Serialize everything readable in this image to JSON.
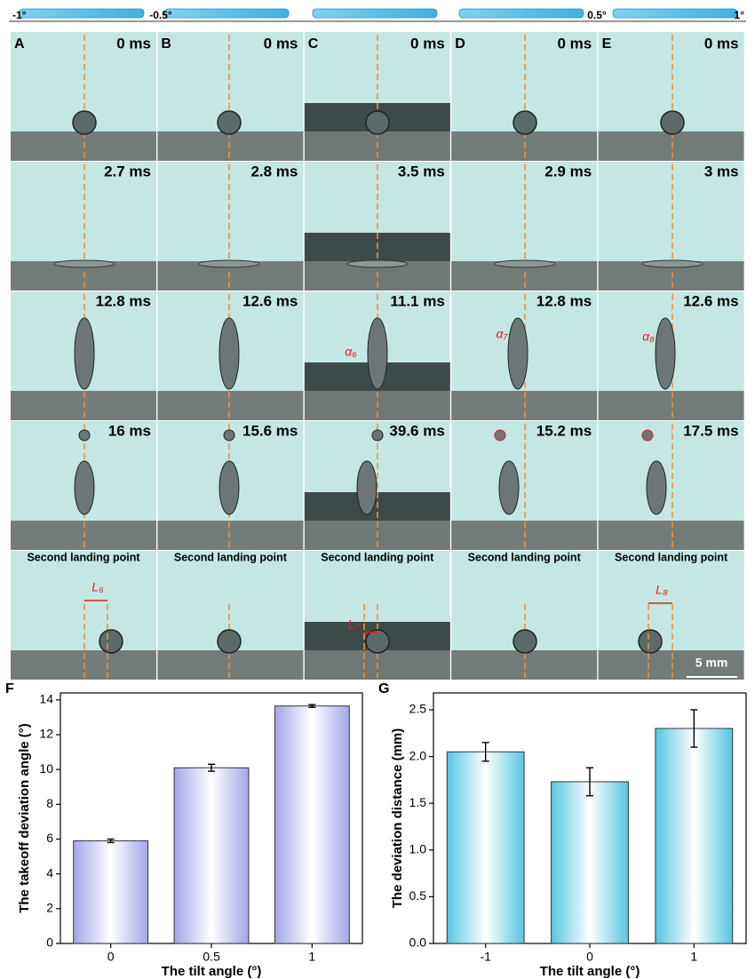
{
  "tilt_labels": [
    "-1°",
    "-0.5°",
    "0.5°",
    "1°"
  ],
  "panels": [
    {
      "letter": "A",
      "times": [
        "0 ms",
        "2.7 ms",
        "12.8 ms",
        "16 ms"
      ]
    },
    {
      "letter": "B",
      "times": [
        "0 ms",
        "2.8 ms",
        "12.6 ms",
        "15.6 ms"
      ]
    },
    {
      "letter": "C",
      "times": [
        "0 ms",
        "3.5 ms",
        "11.1 ms",
        "39.6 ms"
      ]
    },
    {
      "letter": "D",
      "times": [
        "0 ms",
        "2.9 ms",
        "12.8 ms",
        "15.2 ms"
      ]
    },
    {
      "letter": "E",
      "times": [
        "0 ms",
        "3 ms",
        "12.6 ms",
        "17.5 ms"
      ]
    }
  ],
  "landing_label": "Second landing point",
  "annotations": [
    "α₆",
    "α₇",
    "α₈",
    "L₆",
    "L₇",
    "L₈"
  ],
  "scale_bar": "5 mm",
  "chart_data": [
    {
      "type": "bar",
      "panel": "F",
      "xlabel": "The tilt angle (°)",
      "ylabel": "The takeoff deviation angle (°)",
      "categories": [
        "0",
        "0.5",
        "1"
      ],
      "values": [
        5.9,
        10.1,
        13.65
      ],
      "errors": [
        0.1,
        0.2,
        0.08
      ],
      "color": "#a3a6e8",
      "ylim": [
        0,
        14.4
      ],
      "yticks": [
        0,
        2,
        4,
        6,
        8,
        10,
        12,
        14
      ]
    },
    {
      "type": "bar",
      "panel": "G",
      "xlabel": "The tilt angle (°)",
      "ylabel": "The deviation distance (mm)",
      "categories": [
        "-1",
        "0",
        "1"
      ],
      "values": [
        2.05,
        1.73,
        2.3
      ],
      "errors": [
        0.1,
        0.15,
        0.2
      ],
      "color": "#55c6e2",
      "ylim": [
        0,
        2.68
      ],
      "yticks": [
        {
          "value": 0,
          "label": "0.0"
        },
        0.5,
        {
          "value": 1,
          "label": "1.0"
        },
        1.5,
        {
          "value": 2,
          "label": "2.0"
        },
        2.5
      ]
    }
  ]
}
